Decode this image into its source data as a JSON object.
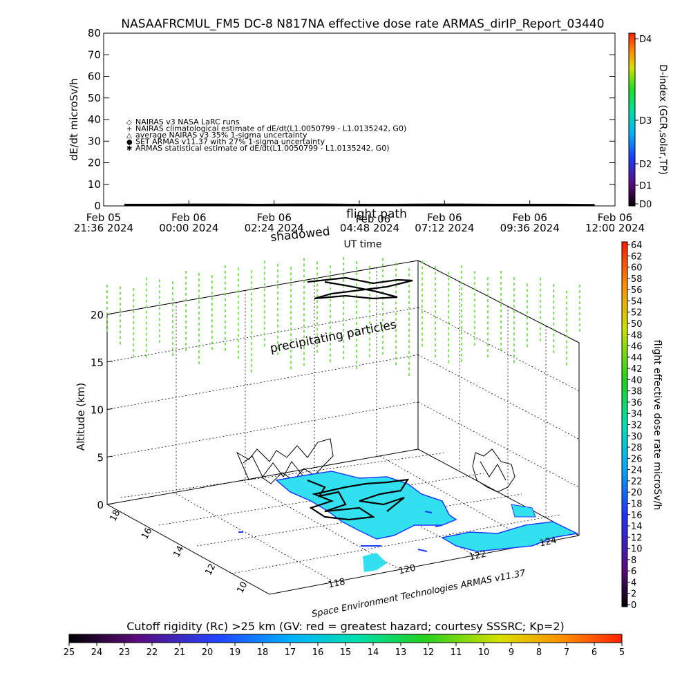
{
  "title": "NASAAFRCMUL_FM5 DC-8   N817NA effective dose rate ARMAS_dirIP_Report_03440",
  "chart_data": [
    {
      "type": "line",
      "panel": "dose-rate-timeseries",
      "ylabel": "dE/dt microSv/h",
      "xlabel": "UT time",
      "ylim": [
        0,
        80
      ],
      "yticks": [
        "0",
        "10",
        "20",
        "30",
        "40",
        "50",
        "60",
        "70",
        "80"
      ],
      "xticks": [
        {
          "line1": "Feb 05",
          "line2": "21:36 2024"
        },
        {
          "line1": "Feb 06",
          "line2": "00:00 2024"
        },
        {
          "line1": "Feb 06",
          "line2": "02:24 2024"
        },
        {
          "line1": "Feb 06",
          "line2": "04:48 2024"
        },
        {
          "line1": "Feb 06",
          "line2": "07:12 2024"
        },
        {
          "line1": "Feb 06",
          "line2": "09:36 2024"
        },
        {
          "line1": "Feb 06",
          "line2": "12:00 2024"
        }
      ],
      "x_hours_since_start": [
        0,
        1,
        2,
        3,
        4,
        5,
        6,
        7,
        8,
        9,
        10,
        11,
        12,
        13,
        14
      ],
      "series_dose_rate": [
        0.5,
        0.5,
        0.6,
        0.6,
        0.5,
        0.6,
        0.6,
        0.5,
        0.5,
        0.6,
        0.6,
        0.5,
        0.5,
        0.5,
        0.4
      ],
      "legend": [
        {
          "symbol": "◇",
          "label": "NAIRAS v3 NASA LaRC runs"
        },
        {
          "symbol": "+",
          "label": "NAIRAS climatological estimate of dE/dt(L1.0050799 - L1.0135242, G0)"
        },
        {
          "symbol": "△",
          "label": "average NAIRAS v3 35% 1-sigma uncertainty"
        },
        {
          "symbol": "●",
          "label": "SET ARMAS v11.37 with 27% 1-sigma uncertainty",
          "color": "#0033ff"
        },
        {
          "symbol": "✱",
          "label": "ARMAS statistical estimate of dE/dt(L1.0050799 - L1.0135242, G0)"
        }
      ],
      "overlay_labels": [
        "Feb 06",
        "flight path",
        "shadowed"
      ],
      "right_axis": {
        "label": "D-index (GCR,solar,TP)",
        "ticks": [
          "D0",
          "D1",
          "D2",
          "D3",
          "D4"
        ]
      }
    },
    {
      "type": "scatter",
      "panel": "3d-flight-view",
      "zlabel": "Altitude (km)",
      "zticks": [
        "0",
        "5",
        "10",
        "15",
        "20"
      ],
      "lat_ticks": [
        "18",
        "16",
        "14",
        "12",
        "10"
      ],
      "lon_ticks": [
        "118",
        "120",
        "122",
        "124"
      ],
      "annotations": [
        "precipitating particles",
        "Space Environment Technologies ARMAS v11.37"
      ],
      "colorbar": {
        "label": "flight effective dose rate microSv/h",
        "ticks": [
          "0",
          "2",
          "4",
          "6",
          "8",
          "10",
          "12",
          "14",
          "16",
          "18",
          "20",
          "22",
          "24",
          "26",
          "28",
          "30",
          "32",
          "34",
          "36",
          "38",
          "40",
          "42",
          "44",
          "46",
          "48",
          "50",
          "52",
          "54",
          "56",
          "58",
          "60",
          "62",
          "64"
        ]
      }
    },
    {
      "type": "heatmap",
      "panel": "cutoff-rigidity-colorbar",
      "label": "Cutoff rigidity (Rc) >25 km (GV: red = greatest hazard; courtesy SSSRC; Kp=2)",
      "ticks": [
        "25",
        "24",
        "23",
        "22",
        "21",
        "20",
        "19",
        "18",
        "17",
        "16",
        "15",
        "14",
        "13",
        "12",
        "11",
        "10",
        "9",
        "8",
        "7",
        "6",
        "5"
      ]
    }
  ]
}
